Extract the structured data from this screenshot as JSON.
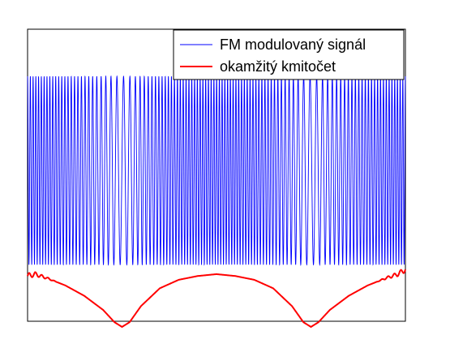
{
  "chart_data": {
    "type": "line",
    "title": "",
    "xlabel": "",
    "ylabel": "",
    "grid": false,
    "legend_position": "top-right",
    "xlim": [
      0,
      1
    ],
    "ylim": [
      -1.6,
      1.5
    ],
    "series": [
      {
        "name": "FM modulovaný signál",
        "color": "#0000ff",
        "kind": "fm_signal",
        "amplitude": 1.0,
        "cycles": 110,
        "frequency_profile": "follows okamžitý kmitočet"
      },
      {
        "name": "okamžitý kmitočet",
        "color": "#ff0000",
        "x": [
          0.0,
          0.02,
          0.05,
          0.1,
          0.15,
          0.2,
          0.23,
          0.25,
          0.27,
          0.3,
          0.35,
          0.4,
          0.45,
          0.5,
          0.55,
          0.6,
          0.65,
          0.7,
          0.73,
          0.75,
          0.77,
          0.8,
          0.85,
          0.9,
          0.95,
          0.98,
          1.0
        ],
        "y": [
          -1.12,
          -1.1,
          -1.14,
          -1.22,
          -1.33,
          -1.48,
          -1.61,
          -1.66,
          -1.61,
          -1.44,
          -1.25,
          -1.16,
          -1.12,
          -1.1,
          -1.12,
          -1.16,
          -1.25,
          -1.44,
          -1.61,
          -1.66,
          -1.61,
          -1.48,
          -1.33,
          -1.22,
          -1.14,
          -1.1,
          -1.05
        ]
      }
    ],
    "legend": [
      "FM modulovaný signál",
      "okamžitý kmitočet"
    ]
  }
}
